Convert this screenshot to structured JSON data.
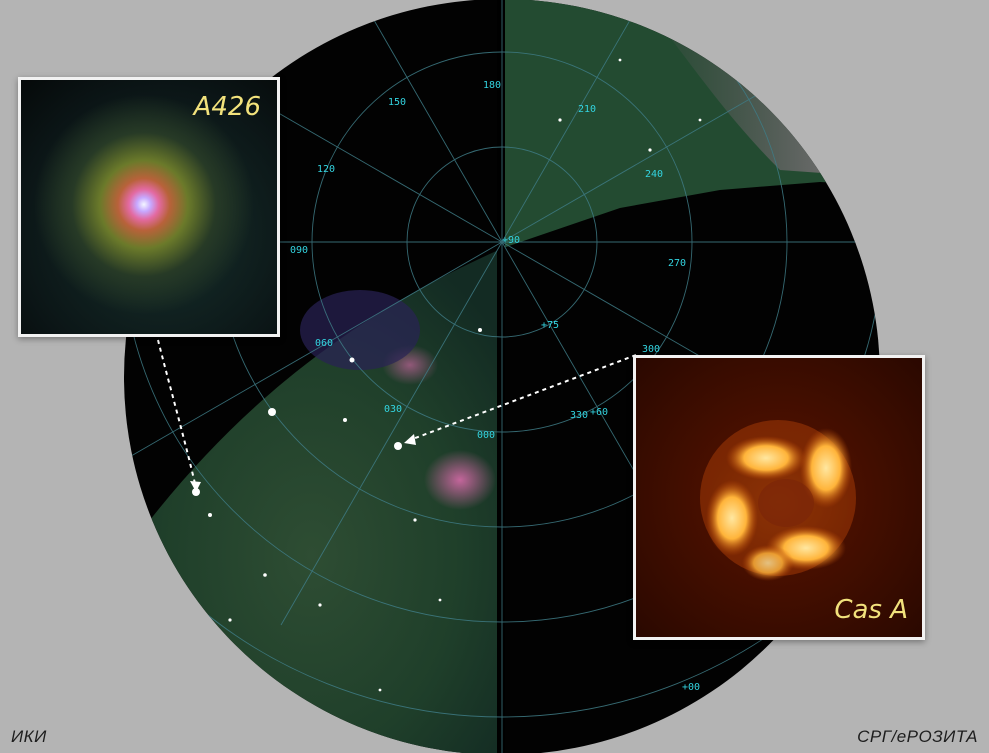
{
  "insets": {
    "a426": {
      "label": "A426"
    },
    "cas_a": {
      "label": "Cas A"
    }
  },
  "credits": {
    "left": "ИКИ",
    "right": "СРГ/еРОЗИТА"
  },
  "grid_labels": {
    "lon_180": "180",
    "lon_150": "150",
    "lon_120": "120",
    "lon_090": "090",
    "lon_060": "060",
    "lon_030": "030",
    "lon_000": "000",
    "lon_210": "210",
    "lon_240": "240",
    "lon_270": "270",
    "lon_300": "300",
    "lon_330": "330",
    "lat_p90": "+90",
    "lat_p75": "+75",
    "lat_p60": "+60",
    "lat_p00": "+00"
  },
  "colors": {
    "background": "#b4b4b4",
    "sky_black": "#020202",
    "survey_green": "#1f4a2c",
    "grid_cyan": "#33d4e0",
    "label_yellow": "#f2e27c"
  }
}
